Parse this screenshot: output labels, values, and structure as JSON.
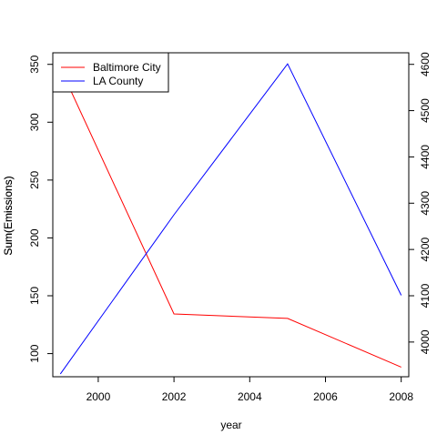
{
  "chart_data": {
    "type": "line",
    "xlabel": "year",
    "ylabel_left": [
      "Sum(Emissions)",
      "Sum(Emissions)"
    ],
    "xlim": [
      1998.8,
      2008.2
    ],
    "x_ticks": [
      2000,
      2002,
      2004,
      2006,
      2008
    ],
    "x_tick_labels": [
      "2000",
      "2002",
      "2004",
      "2006",
      "2008"
    ],
    "y_left_lim": [
      80,
      360
    ],
    "y_left_ticks": [
      100,
      150,
      200,
      250,
      300,
      350
    ],
    "y_left_tick_labels": [
      "100",
      "150",
      "200",
      "250",
      "300",
      "350"
    ],
    "y_right_lim": [
      3925,
      4625
    ],
    "y_right_ticks": [
      4000,
      4100,
      4200,
      4300,
      4400,
      4500,
      4600
    ],
    "y_right_tick_labels": [
      "4000",
      "4100",
      "4200",
      "4300",
      "4400",
      "4500",
      "4600"
    ],
    "legend_position": "top-left",
    "series": [
      {
        "name": "Baltimore City",
        "color": "#ff0000",
        "axis": "left",
        "x": [
          1999,
          2002,
          2005,
          2008
        ],
        "values": [
          346.8,
          134.3,
          130.4,
          88.3
        ]
      },
      {
        "name": "LA County",
        "color": "#0000ff",
        "axis": "right",
        "x": [
          1999,
          2002,
          2005,
          2008
        ],
        "values": [
          3931,
          4275,
          4601,
          4101
        ]
      }
    ]
  }
}
